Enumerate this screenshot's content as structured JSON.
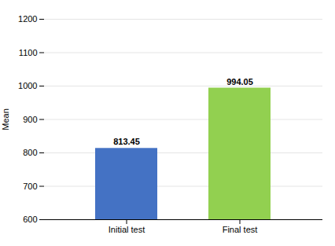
{
  "chart_data": {
    "type": "bar",
    "categories": [
      "Initial test",
      "Final test"
    ],
    "values": [
      813.45,
      994.05
    ],
    "colors": [
      "#4472C4",
      "#92D050"
    ],
    "ylabel": "Mean",
    "ylim": [
      600,
      1200
    ],
    "yticks": [
      600,
      700,
      800,
      900,
      1000,
      1100,
      1200
    ],
    "grid": true,
    "data_labels": true
  }
}
